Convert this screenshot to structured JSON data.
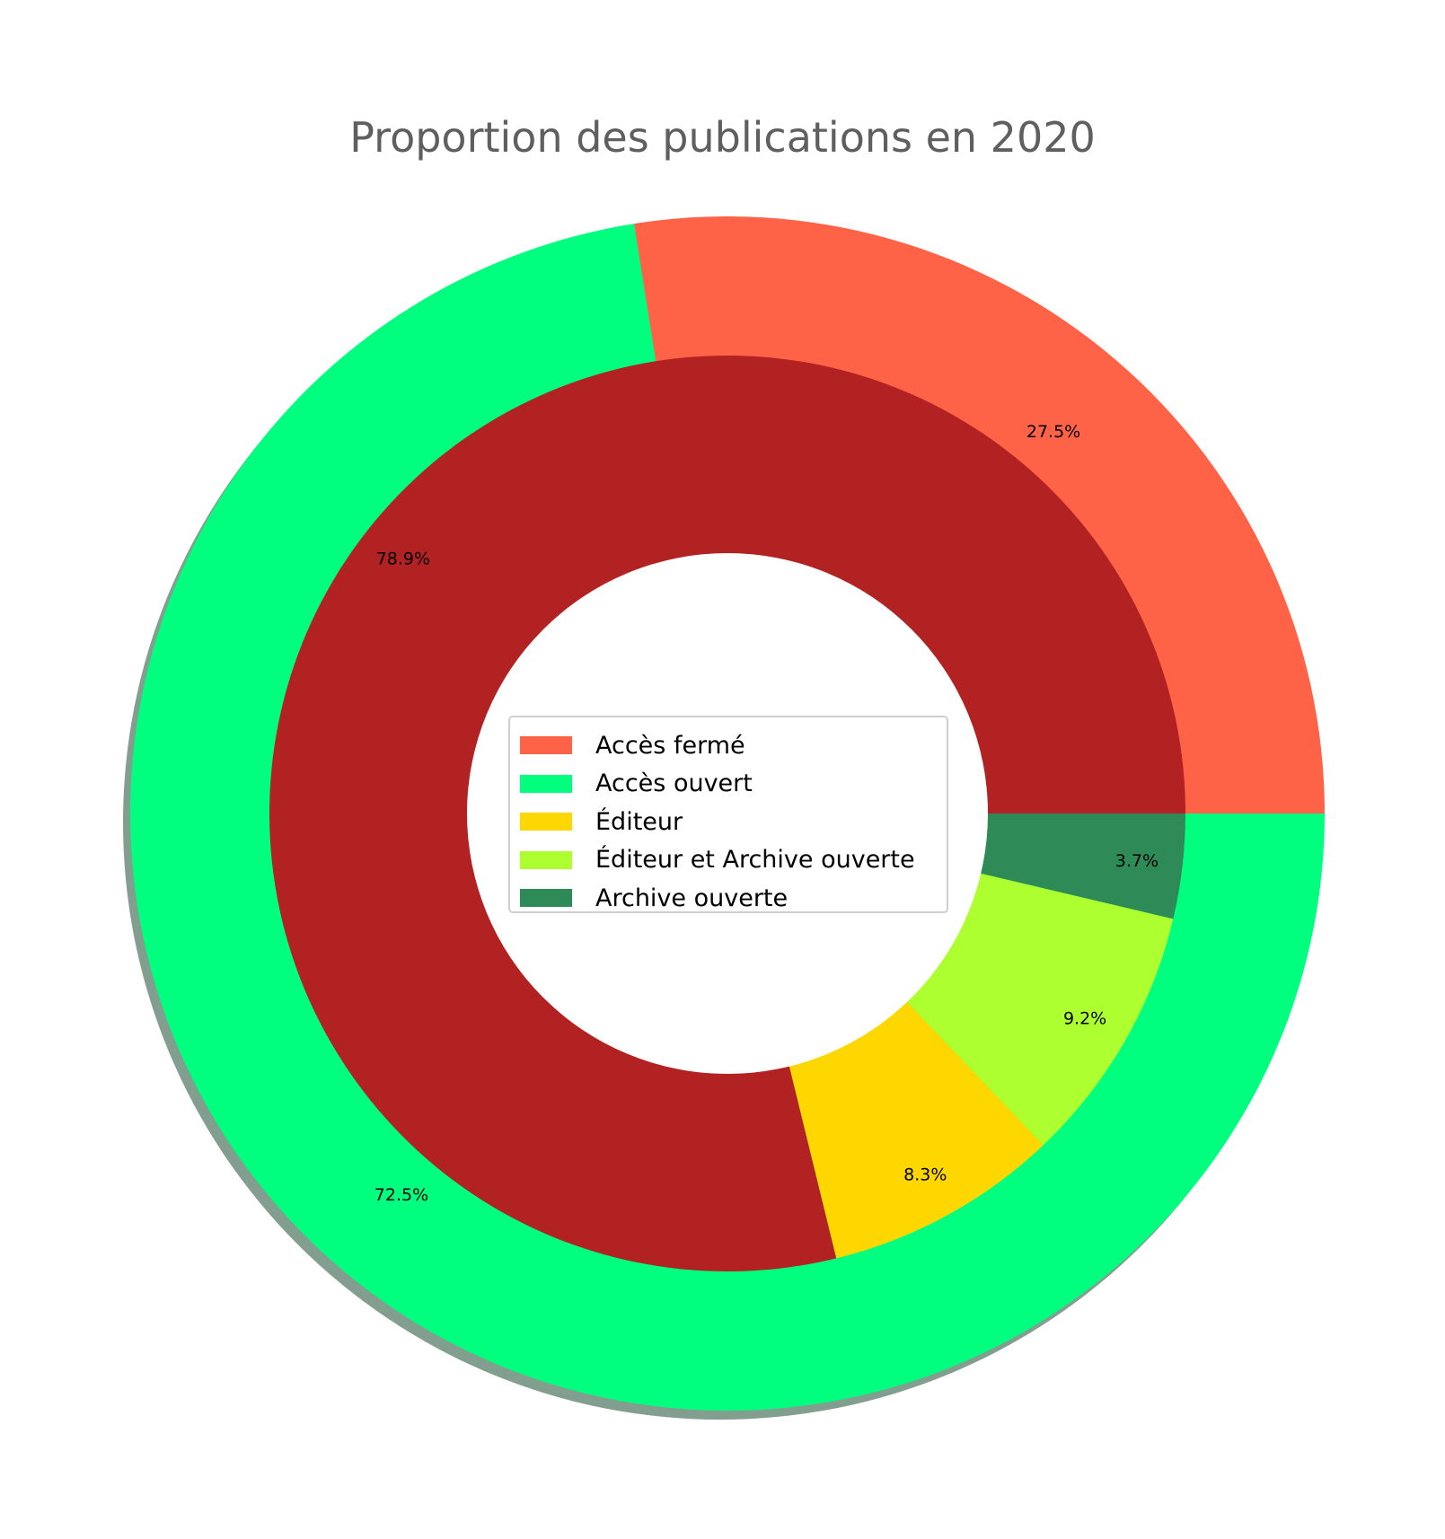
{
  "chart_data": {
    "type": "pie",
    "title": "Proportion des publications en 2020",
    "outer_ring": {
      "slices": [
        {
          "label": "Accès fermé",
          "value": 27.5,
          "value_label": "27.5%",
          "color": "#ff6347"
        },
        {
          "label": "Accès ouvert",
          "value": 72.5,
          "value_label": "72.5%",
          "color": "#00ff7f"
        }
      ]
    },
    "inner_ring": {
      "slices": [
        {
          "value": 78.9,
          "value_label": "78.9%",
          "color": "#b22222"
        },
        {
          "label": "Éditeur",
          "value": 8.3,
          "value_label": "8.3%",
          "color": "#ffd700"
        },
        {
          "label": "Éditeur et Archive ouverte",
          "value": 9.2,
          "value_label": "9.2%",
          "color": "#adff2f"
        },
        {
          "label": "Archive ouverte",
          "value": 3.7,
          "value_label": "3.7%",
          "color": "#2e8b57"
        }
      ]
    },
    "start_angle_deg": 0,
    "direction": "counterclockwise",
    "shadow": true,
    "legend": {
      "placement": "center",
      "entries": [
        {
          "label": "Accès fermé",
          "color": "#ff6347"
        },
        {
          "label": "Accès ouvert",
          "color": "#00ff7f"
        },
        {
          "label": "Éditeur",
          "color": "#ffd700"
        },
        {
          "label": "Éditeur et Archive ouverte",
          "color": "#adff2f"
        },
        {
          "label": "Archive ouverte",
          "color": "#2e8b57"
        }
      ]
    }
  }
}
